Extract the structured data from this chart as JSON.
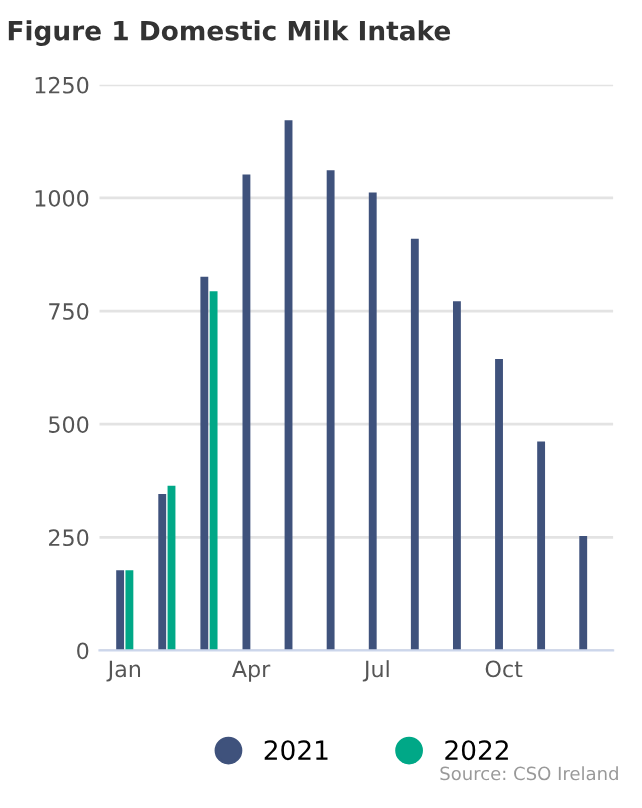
{
  "chart_data": {
    "type": "bar",
    "title": "Figure 1 Domestic Milk Intake",
    "categories": [
      "Jan",
      null,
      null,
      "Apr",
      null,
      null,
      "Jul",
      null,
      null,
      "Oct",
      null,
      null
    ],
    "series": [
      {
        "name": "2021",
        "color": "#3f527c",
        "values": [
          177,
          346,
          826,
          1052,
          1172,
          1061,
          1012,
          910,
          772,
          644,
          462,
          253
        ]
      },
      {
        "name": "2022",
        "color": "#00a887",
        "values": [
          177,
          364,
          794,
          null,
          null,
          null,
          null,
          null,
          null,
          null,
          null,
          null
        ]
      }
    ],
    "ylim": [
      0,
      1250
    ],
    "yticks": [
      0,
      250,
      500,
      750,
      1000,
      1250
    ],
    "grid": "y",
    "legend": "bottom",
    "annotations": [
      "Source: CSO Ireland"
    ]
  }
}
